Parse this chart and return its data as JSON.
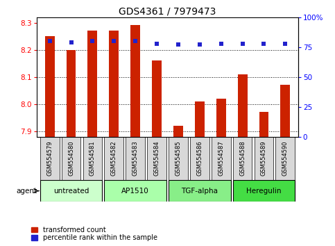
{
  "title": "GDS4361 / 7979473",
  "samples": [
    "GSM554579",
    "GSM554580",
    "GSM554581",
    "GSM554582",
    "GSM554583",
    "GSM554584",
    "GSM554585",
    "GSM554586",
    "GSM554587",
    "GSM554588",
    "GSM554589",
    "GSM554590"
  ],
  "bar_values": [
    8.25,
    8.2,
    8.27,
    8.27,
    8.29,
    8.16,
    7.92,
    8.01,
    8.02,
    8.11,
    7.97,
    8.07
  ],
  "percentile_values": [
    80,
    79,
    80,
    80,
    80,
    78,
    77,
    77,
    78,
    78,
    78,
    78
  ],
  "ylim_left": [
    7.88,
    8.32
  ],
  "ylim_right": [
    0,
    100
  ],
  "yticks_left": [
    7.9,
    8.0,
    8.1,
    8.2,
    8.3
  ],
  "yticks_right": [
    0,
    25,
    50,
    75,
    100
  ],
  "ytick_labels_right": [
    "0",
    "25",
    "50",
    "75",
    "100%"
  ],
  "bar_color": "#cc2200",
  "percentile_color": "#2222cc",
  "bar_bottom": 7.88,
  "agent_groups": [
    {
      "label": "untreated",
      "start": 0,
      "end": 2,
      "color": "#ccffcc"
    },
    {
      "label": "AP1510",
      "start": 3,
      "end": 5,
      "color": "#aaffaa"
    },
    {
      "label": "TGF-alpha",
      "start": 6,
      "end": 8,
      "color": "#88ee88"
    },
    {
      "label": "Heregulin",
      "start": 9,
      "end": 11,
      "color": "#44dd44"
    }
  ],
  "legend_bar_label": "transformed count",
  "legend_pct_label": "percentile rank within the sample",
  "xlabel_agent": "agent",
  "title_fontsize": 10,
  "tick_fontsize": 7.5,
  "sample_fontsize": 6,
  "group_fontsize": 7.5,
  "legend_fontsize": 7
}
